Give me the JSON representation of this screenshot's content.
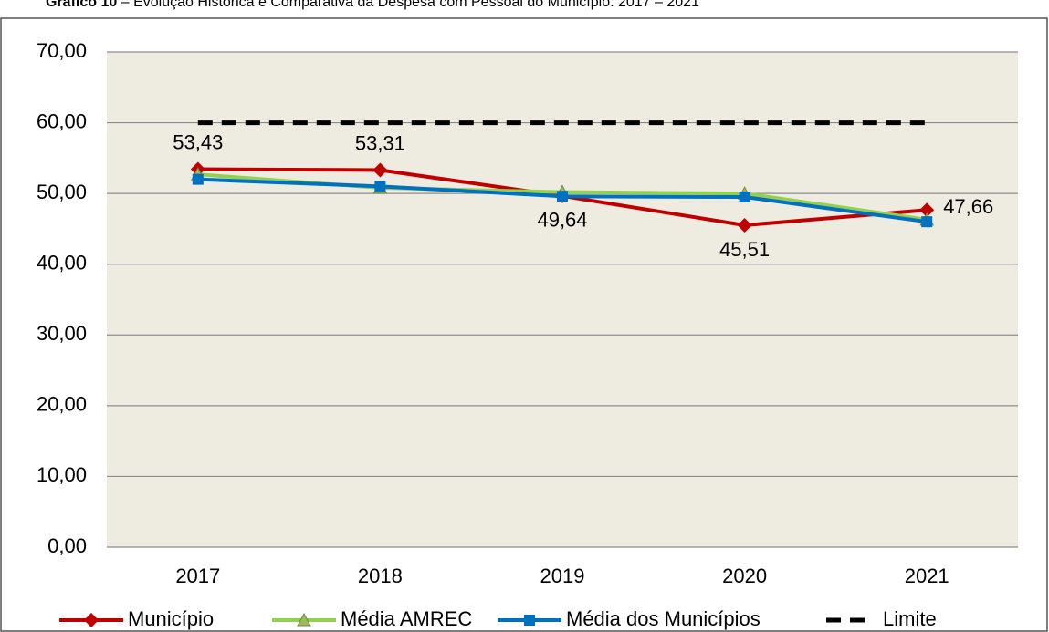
{
  "chart_data": {
    "type": "line",
    "title_label": "Gráfico 10",
    "title": "– Evolução Histórica e Comparativa da Despesa com Pessoal do Município: 2017 – 2021",
    "categories": [
      "2017",
      "2018",
      "2019",
      "2020",
      "2021"
    ],
    "series": [
      {
        "name": "Município",
        "color": "#c00000",
        "marker": "diamond",
        "dashed": false,
        "values": [
          53.43,
          53.31,
          49.64,
          45.51,
          47.66
        ],
        "value_labels": [
          "53,43",
          "53,31",
          "49,64",
          "45,51",
          "47,66"
        ]
      },
      {
        "name": "Média AMREC",
        "color": "#92d050",
        "marker": "triangle",
        "dashed": false,
        "values": [
          52.7,
          50.8,
          50.2,
          50.0,
          46.3
        ]
      },
      {
        "name": "Média dos Municípios",
        "color": "#0070c0",
        "marker": "square",
        "dashed": false,
        "values": [
          52.0,
          51.0,
          49.6,
          49.5,
          46.0
        ]
      },
      {
        "name": "Limite",
        "color": "#000000",
        "marker": "none",
        "dashed": true,
        "values": [
          60,
          60,
          60,
          60,
          60
        ]
      }
    ],
    "ylim": [
      0,
      70
    ],
    "yticks": [
      {
        "value": 0,
        "label": "0,00"
      },
      {
        "value": 10,
        "label": "10,00"
      },
      {
        "value": 20,
        "label": "20,00"
      },
      {
        "value": 30,
        "label": "30,00"
      },
      {
        "value": 40,
        "label": "40,00"
      },
      {
        "value": 50,
        "label": "50,00"
      },
      {
        "value": 60,
        "label": "60,00"
      },
      {
        "value": 70,
        "label": "70,00"
      }
    ],
    "grid": true,
    "legend": "bottom"
  }
}
